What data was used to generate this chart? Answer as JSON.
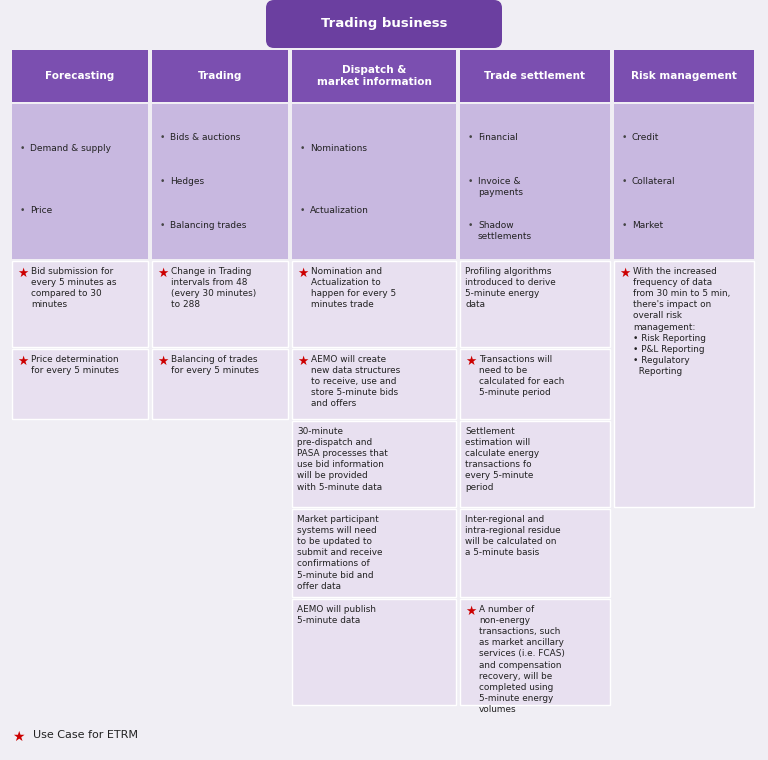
{
  "title": "Trading business",
  "title_bg": "#6B3FA0",
  "title_text_color": "#FFFFFF",
  "header_bg": "#7B4FB0",
  "header_text_color": "#FFFFFF",
  "bullet_bg": "#C8B8E0",
  "cell_bg_light": "#E8E0F0",
  "outer_bg": "#F0EEF4",
  "border_color": "#FFFFFF",
  "star_color": "#CC0000",
  "text_color": "#222222",
  "columns": [
    "Forecasting",
    "Trading",
    "Dispatch &\nmarket information",
    "Trade settlement",
    "Risk management"
  ],
  "bullet_items": [
    [
      "Demand & supply",
      "Price"
    ],
    [
      "Bids & auctions",
      "Hedges",
      "Balancing trades"
    ],
    [
      "Nominations",
      "Actualization"
    ],
    [
      "Financial",
      "Invoice &\npayments",
      "Shadow\nsettlements"
    ],
    [
      "Credit",
      "Collateral",
      "Market"
    ]
  ],
  "star_items_col0": [
    {
      "text": "Bid submission for\nevery 5 minutes as\ncompared to 30\nminutes",
      "star": true
    },
    {
      "text": "Price determination\nfor every 5 minutes",
      "star": true
    }
  ],
  "star_items_col1": [
    {
      "text": "Change in Trading\nintervals from 48\n(every 30 minutes)\nto 288",
      "star": true
    },
    {
      "text": "Balancing of trades\nfor every 5 minutes",
      "star": true
    }
  ],
  "star_items_col2": [
    {
      "text": "Nomination and\nActualization to\nhappen for every 5\nminutes trade",
      "star": true
    },
    {
      "text": "AEMO will create\nnew data structures\nto receive, use and\nstore 5-minute bids\nand offers",
      "star": true
    },
    {
      "text": "30-minute\npre-dispatch and\nPASA processes that\nuse bid information\nwill be provided\nwith 5-minute data",
      "star": false
    },
    {
      "text": "Market participant\nsystems will need\nto be updated to\nsubmit and receive\nconfirmations of\n5-minute bid and\noffer data",
      "star": false
    },
    {
      "text": "AEMO will publish\n5-minute data",
      "star": false
    }
  ],
  "star_items_col3": [
    {
      "text": "Profiling algorithms\nintroduced to derive\n5-minute energy\ndata",
      "star": false
    },
    {
      "text": "Transactions will\nneed to be\ncalculated for each\n5-minute period",
      "star": true
    },
    {
      "text": "Settlement\nestimation will\ncalculate energy\ntransactions fo\nevery 5-minute\nperiod",
      "star": false
    },
    {
      "text": "Inter-regional and\nintra-regional residue\nwill be calculated on\na 5-minute basis",
      "star": false
    },
    {
      "text": "A number of\nnon-energy\ntransactions, such\nas market ancillary\nservices (i.e. FCAS)\nand compensation\nrecovery, will be\ncompleted using\n5-minute energy\nvolumes",
      "star": true
    }
  ],
  "star_items_col4": [
    {
      "text": "With the increased\nfrequency of data\nfrom 30 min to 5 min,\nthere's impact on\noverall risk\nmanagement:\n• Risk Reporting\n• P&L Reporting\n• Regulatory\n  Reporting",
      "star": true
    }
  ],
  "footer_text": "  Use Case for ETRM"
}
